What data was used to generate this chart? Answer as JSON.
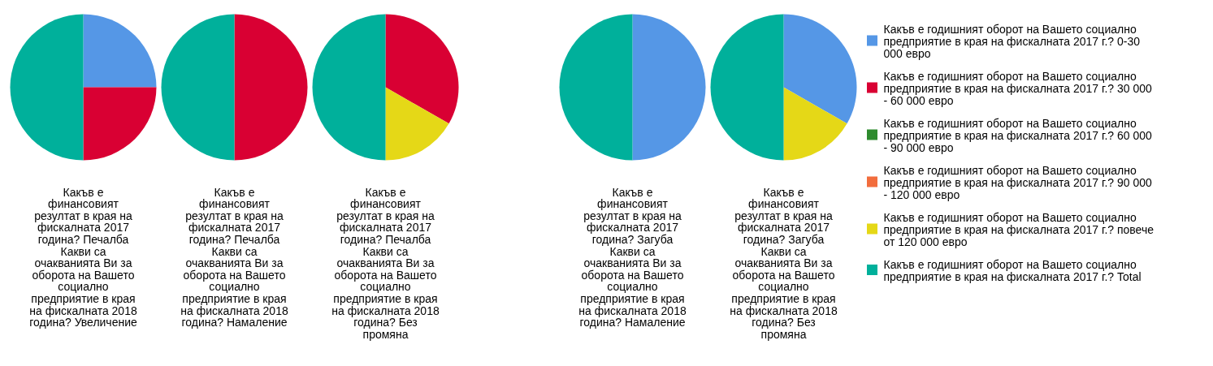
{
  "chart_data": [
    {
      "type": "pie",
      "title": "Какъв е финансовият резултат в края на фискалната 2017 година? Печалба Какви са очакванията Ви за оборота на Вашето социално предприятие в края на фискалната 2018 година? Увеличение",
      "categories": [
        "Какъв е годишният оборот на Вашето социално предприятие в края на фискалната 2017 г.? 0-30 000 евро",
        "Какъв е годишният оборот на Вашето социално предприятие в края на фискалната 2017 г.? 30 000 - 60 000 евро",
        "Какъв е годишният оборот на Вашето социално предприятие в края на фискалната 2017 г.? 60 000 - 90 000 евро",
        "Какъв е годишният оборот на Вашето социално предприятие в края на фискалната 2017 г.? 90 000 - 120 000 евро",
        "Какъв е годишният оборот на Вашето социално предприятие в края на фискалната 2017 г.? повече от 120 000 евро",
        "Какъв е годишният оборот на Вашето социално предприятие в края на фискалната 2017 г.? Total"
      ],
      "values": [
        25,
        25,
        0,
        0,
        0,
        50
      ],
      "colors": [
        "#5597e6",
        "#d90033",
        "#2e8b2e",
        "#f26d3d",
        "#e5d817",
        "#00b09b"
      ],
      "legend": "right"
    },
    {
      "type": "pie",
      "title": "Какъв е финансовият резултат в края на фискалната 2017 година? Печалба Какви са очакванията Ви за оборота на Вашето социално предприятие в края на фискалната 2018 година? Намаление",
      "values": [
        0,
        50,
        0,
        0,
        0,
        50
      ],
      "colors": [
        "#5597e6",
        "#d90033",
        "#2e8b2e",
        "#f26d3d",
        "#e5d817",
        "#00b09b"
      ]
    },
    {
      "type": "pie",
      "title": "Какъв е финансовият резултат в края на фискалната 2017 година? Печалба Какви са очакванията Ви за оборота на Вашето социално предприятие в края на фискалната 2018 година? Без промяна",
      "values": [
        0,
        33.3,
        0,
        0,
        16.7,
        50
      ],
      "colors": [
        "#5597e6",
        "#d90033",
        "#2e8b2e",
        "#f26d3d",
        "#e5d817",
        "#00b09b"
      ]
    },
    {
      "type": "pie",
      "title": "Какъв е финансовият резултат в края на фискалната 2017 година? Загуба Какви са очакванията Ви за оборота на Вашето социално предприятие в края на фискалната 2018 година? Намаление",
      "values": [
        50,
        0,
        0,
        0,
        0,
        50
      ],
      "colors": [
        "#5597e6",
        "#d90033",
        "#2e8b2e",
        "#f26d3d",
        "#e5d817",
        "#00b09b"
      ]
    },
    {
      "type": "pie",
      "title": "Какъв е финансовият резултат в края на фискалната 2017 година? Загуба Какви са очакванията Ви за оборота на Вашето социално предприятие в края на фискалната 2018 година? Без промяна",
      "values": [
        33.3,
        0,
        0,
        0,
        16.7,
        50
      ],
      "colors": [
        "#5597e6",
        "#d90033",
        "#2e8b2e",
        "#f26d3d",
        "#e5d817",
        "#00b09b"
      ]
    }
  ]
}
